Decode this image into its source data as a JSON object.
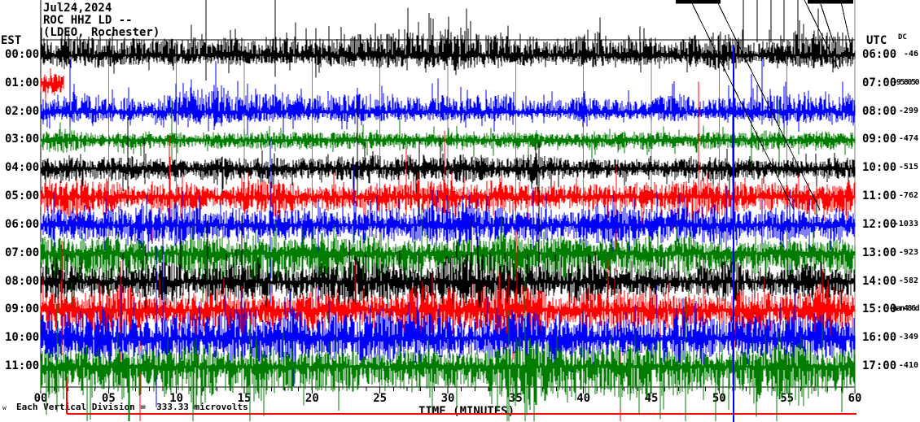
{
  "title": {
    "line1": "Jul24,2024",
    "line2": "ROC HHZ LD --",
    "line3": "(LDEO, Rochester)"
  },
  "left_axis": {
    "header": "EST"
  },
  "right_axis": {
    "header": "UTC",
    "dc_header": "DC"
  },
  "x_axis": {
    "tick_labels": [
      "00",
      "05",
      "10",
      "15",
      "20",
      "25",
      "30",
      "35",
      "40",
      "45",
      "50",
      "55",
      "60"
    ],
    "title": "TIME (MINUTES)"
  },
  "footer": {
    "caption": "Each Vertical Division =  333.33 microvolts",
    "watermark": "w"
  },
  "colors": {
    "trace_black": "#000000",
    "trace_red": "#ff0000",
    "trace_blue": "#0000ff",
    "trace_green": "#007c00",
    "grid": "#808080",
    "border": "#000000",
    "alert_line": "#ff0000",
    "text": "#000000"
  },
  "chart_data": {
    "type": "line",
    "subtype": "seismogram-helicorder",
    "station_title": "Jul24,2024 ROC HHZ LD -- (LDEO, Rochester)",
    "xlabel": "TIME (MINUTES)",
    "x_range_minutes": [
      0,
      60
    ],
    "x_tick_labels": [
      "00",
      "05",
      "10",
      "15",
      "20",
      "25",
      "30",
      "35",
      "40",
      "45",
      "50",
      "55",
      "60"
    ],
    "grid": "vertical gray lines every 5 minutes",
    "legend_position": "none",
    "vertical_division_caption": "Each Vertical Division =  333.33 microvolts",
    "rows": [
      {
        "est": "00:00",
        "utc": "06:00",
        "dc": "-46",
        "color": "black",
        "activity": "moderate noise with repeated spiky bursts, largest bursts clipped at image top"
      },
      {
        "est": "01:00",
        "utc": "07:00",
        "dc": "-958050",
        "color": "red",
        "activity": "short burst at start of hour then data gap (flat/absent)"
      },
      {
        "est": "02:00",
        "utc": "08:00",
        "dc": "-299",
        "color": "blue",
        "activity": "active, frequent tall upward spikes"
      },
      {
        "est": "03:00",
        "utc": "09:00",
        "dc": "-474",
        "color": "green",
        "activity": "moderately active"
      },
      {
        "est": "04:00",
        "utc": "10:00",
        "dc": "-515",
        "color": "black",
        "activity": "active with bursts"
      },
      {
        "est": "05:00",
        "utc": "11:00",
        "dc": "-762",
        "color": "red",
        "activity": "very active with large bursts"
      },
      {
        "est": "06:00",
        "utc": "12:00",
        "dc": "-1033",
        "color": "blue",
        "activity": "very active"
      },
      {
        "est": "07:00",
        "utc": "13:00",
        "dc": "-923",
        "color": "green",
        "activity": "very active, large downward spikes"
      },
      {
        "est": "08:00",
        "utc": "14:00",
        "dc": "-582",
        "color": "black",
        "activity": "very active"
      },
      {
        "est": "09:00",
        "utc": "15:00",
        "dc": "-nan486d",
        "color": "red",
        "activity": "very active, large bursts"
      },
      {
        "est": "10:00",
        "utc": "16:00",
        "dc": "-349",
        "color": "blue",
        "activity": "very active, one full-height blue spike near minute 51"
      },
      {
        "est": "11:00",
        "utc": "17:00",
        "dc": "-410",
        "color": "green",
        "activity": "very active, spikes descend past the time axis"
      }
    ]
  }
}
